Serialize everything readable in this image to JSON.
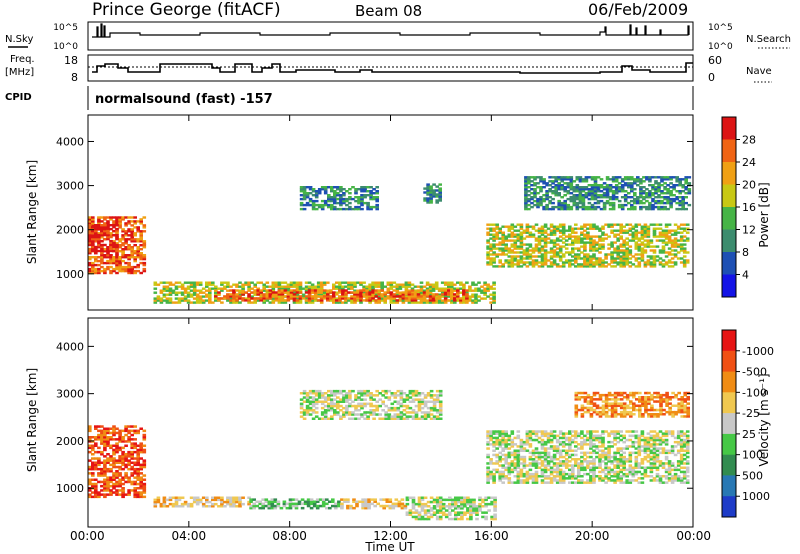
{
  "header": {
    "title": "Prince George (fitACF)",
    "beam": "Beam 08",
    "date": "06/Feb/2009"
  },
  "top_panels": {
    "nsky_label": "N.Sky",
    "nsky_ticks": [
      "10^5",
      "10^0"
    ],
    "nsearch_label": "N.Search",
    "nsearch_ticks": [
      "10^5",
      "10^0"
    ],
    "freq_label_1": "Freq.",
    "freq_label_2": "[MHz]",
    "freq_ticks": [
      "18",
      "8"
    ],
    "nave_label": "Nave",
    "nave_ticks": [
      "60",
      "0"
    ],
    "cpid_label": "CPID",
    "mode_text": "normalsound (fast) -157"
  },
  "chart_data": [
    {
      "type": "heatmap",
      "name": "power",
      "ylabel": "Slant Range [km]",
      "ylim": [
        180,
        4600
      ],
      "y_ticks": [
        "1000",
        "2000",
        "3000",
        "4000"
      ],
      "x_range_hours": [
        0,
        24
      ],
      "colorbar": {
        "label": "Power [dB]",
        "ticks": [
          "4",
          "8",
          "12",
          "16",
          "20",
          "24",
          "28"
        ],
        "colors": [
          "#1414e6",
          "#1e50b4",
          "#3c8c6e",
          "#46b446",
          "#c8c814",
          "#f0a014",
          "#f06414",
          "#dc1414"
        ]
      },
      "regions": [
        {
          "t0": 0.0,
          "t1": 2.2,
          "r0": 1000,
          "r1": 2300,
          "level": 6
        },
        {
          "t0": 0.0,
          "t1": 1.2,
          "r0": 1500,
          "r1": 2100,
          "level": 7
        },
        {
          "t0": 2.6,
          "t1": 16.1,
          "r0": 330,
          "r1": 800,
          "level": 4
        },
        {
          "t0": 5.0,
          "t1": 15.0,
          "r0": 380,
          "r1": 650,
          "level": 6
        },
        {
          "t0": 8.4,
          "t1": 11.4,
          "r0": 2450,
          "r1": 2950,
          "level": 2
        },
        {
          "t0": 13.3,
          "t1": 14.0,
          "r0": 2600,
          "r1": 3050,
          "level": 2
        },
        {
          "t0": 15.8,
          "t1": 23.8,
          "r0": 1150,
          "r1": 2100,
          "level": 4
        },
        {
          "t0": 17.3,
          "t1": 23.8,
          "r0": 2450,
          "r1": 3200,
          "level": 2
        }
      ]
    },
    {
      "type": "heatmap",
      "name": "velocity",
      "ylabel": "Slant Range [km]",
      "ylim": [
        180,
        4600
      ],
      "y_ticks": [
        "1000",
        "2000",
        "3000",
        "4000"
      ],
      "x_ticks": [
        "00:00",
        "04:00",
        "08:00",
        "12:00",
        "16:00",
        "20:00",
        "00:00"
      ],
      "xlabel": "Time UT",
      "colorbar": {
        "label": "Velocity [m s⁻¹]",
        "ticks": [
          "1000",
          "500",
          "100",
          "25",
          "-25",
          "-100",
          "-500",
          "-1000"
        ],
        "colors": [
          "#1e3cc8",
          "#2878b4",
          "#328c50",
          "#46c846",
          "#c8c8c8",
          "#f0c850",
          "#f08c14",
          "#f05014",
          "#e61414"
        ]
      },
      "regions": [
        {
          "t0": 0.0,
          "t1": 2.2,
          "r0": 800,
          "r1": 2300,
          "level": 7
        },
        {
          "t0": 2.6,
          "t1": 6.4,
          "r0": 600,
          "r1": 820,
          "level": 5
        },
        {
          "t0": 6.4,
          "t1": 10.0,
          "r0": 560,
          "r1": 780,
          "level": 3
        },
        {
          "t0": 10.0,
          "t1": 12.6,
          "r0": 560,
          "r1": 780,
          "level": 5
        },
        {
          "t0": 12.6,
          "t1": 16.1,
          "r0": 330,
          "r1": 800,
          "level": 4
        },
        {
          "t0": 8.4,
          "t1": 14.0,
          "r0": 2450,
          "r1": 3050,
          "level": 4
        },
        {
          "t0": 15.8,
          "t1": 23.8,
          "r0": 1100,
          "r1": 2200,
          "level": 4
        },
        {
          "t0": 19.3,
          "t1": 23.8,
          "r0": 2500,
          "r1": 3000,
          "level": 6
        }
      ]
    }
  ]
}
